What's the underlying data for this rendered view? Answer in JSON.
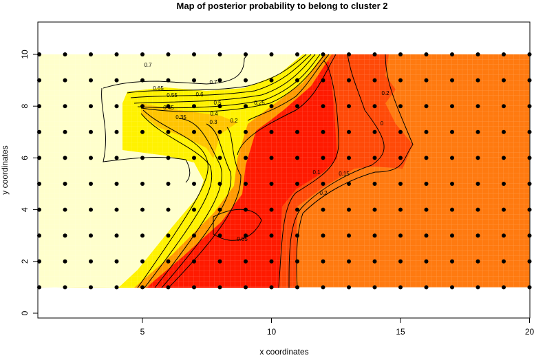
{
  "chart_data": {
    "type": "heatmap",
    "title": "Map of posterior probability to belong to cluster  2",
    "xlabel": "x coordinates",
    "ylabel": "y coordinates",
    "xlim": [
      1,
      20
    ],
    "ylim": [
      -0.2,
      11.2
    ],
    "x_ticks": [
      5,
      10,
      15,
      20
    ],
    "y_ticks": [
      0,
      2,
      4,
      6,
      8,
      10
    ],
    "grid_points": {
      "x": [
        1,
        2,
        3,
        4,
        5,
        6,
        7,
        8,
        9,
        10,
        11,
        12,
        13,
        14,
        15,
        16,
        17,
        18,
        19,
        20
      ],
      "y": [
        1,
        2,
        3,
        4,
        5,
        6,
        7,
        8,
        9,
        10
      ]
    },
    "contour_labels": [
      "0.7",
      "0.7",
      "0.65",
      "0.6",
      "0.55",
      "0.5",
      "0.45",
      "0.4",
      "0.35",
      "0.3",
      "0.25",
      "0.2",
      "0.2",
      "0.2",
      "0.15",
      "0.1",
      "0.05",
      "0"
    ],
    "colors": {
      "pale": "#FFFFCC",
      "yellow": "#FFF200",
      "gold": "#FFC400",
      "orange": "#FF7A10",
      "orangered": "#FF4A08",
      "red": "#FF1A00"
    }
  }
}
